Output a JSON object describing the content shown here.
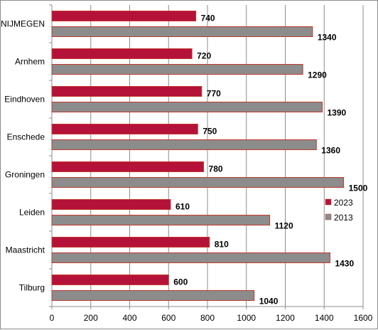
{
  "chart_data": {
    "type": "bar",
    "orientation": "horizontal",
    "title": "",
    "xlabel": "",
    "ylabel": "",
    "categories": [
      "NIJMEGEN",
      "Arnhem",
      "Eindhoven",
      "Enschede",
      "Groningen",
      "Leiden",
      "Maastricht",
      "Tilburg"
    ],
    "series": [
      {
        "name": "2023",
        "color": "#b5123a",
        "values": [
          740,
          720,
          770,
          750,
          780,
          610,
          810,
          600
        ]
      },
      {
        "name": "2013",
        "color": "#8c8c8c",
        "values": [
          1340,
          1290,
          1390,
          1360,
          1500,
          1120,
          1430,
          1040
        ]
      }
    ],
    "xlim": [
      0,
      1600
    ],
    "xticks": [
      0,
      200,
      400,
      600,
      800,
      1000,
      1200,
      1400,
      1600
    ],
    "grid": "vertical",
    "legend_position": "right"
  }
}
